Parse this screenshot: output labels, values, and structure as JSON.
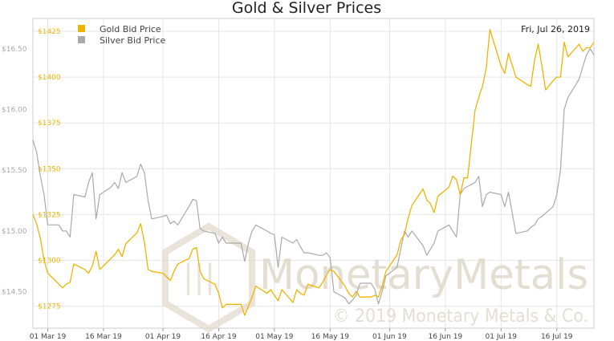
{
  "chart_data": {
    "type": "line",
    "title": "Gold & Silver Prices",
    "date_label": "Fri, Jul 26, 2019",
    "watermark": {
      "name": "MonetaryMetals",
      "copyright": "© 2019 Monetary Metals & Co."
    },
    "legend": {
      "placement": "top-left",
      "entries": [
        "Gold Bid Price",
        "Silver Bid Price"
      ]
    },
    "colors": {
      "gold": "#f0b400",
      "silver": "#a9a9a9",
      "silver_axis": "#a9a9a9",
      "grid": "#e6e6e6",
      "watermark": "#dcd3c4"
    },
    "x_axis": {
      "ticks": [
        {
          "date": "2019-03-01",
          "label": "01 Mar 19"
        },
        {
          "date": "2019-03-16",
          "label": "16 Mar 19"
        },
        {
          "date": "2019-04-01",
          "label": "01 Apr 19"
        },
        {
          "date": "2019-04-16",
          "label": "16 Apr 19"
        },
        {
          "date": "2019-05-01",
          "label": "01 May 19"
        },
        {
          "date": "2019-05-16",
          "label": "16 May 19"
        },
        {
          "date": "2019-06-01",
          "label": "01 Jun 19"
        },
        {
          "date": "2019-06-16",
          "label": "16 Jun 19"
        },
        {
          "date": "2019-07-01",
          "label": "01 Jul 19"
        },
        {
          "date": "2019-07-16",
          "label": "16 Jul 19"
        }
      ],
      "range": [
        "2019-02-25",
        "2019-07-26"
      ]
    },
    "gold_axis": {
      "ylim": [
        1263,
        1432
      ],
      "ticks": [
        {
          "value": 1275,
          "label": "$1275"
        },
        {
          "value": 1300,
          "label": "$1300"
        },
        {
          "value": 1325,
          "label": "$1325"
        },
        {
          "value": 1350,
          "label": "$1350"
        },
        {
          "value": 1375,
          "label": "$1375"
        },
        {
          "value": 1400,
          "label": "$1400"
        },
        {
          "value": 1425,
          "label": "$1425"
        }
      ]
    },
    "silver_axis": {
      "ylim": [
        14.2,
        16.75
      ],
      "ticks": [
        {
          "value": 14.5,
          "label": "$14.50"
        },
        {
          "value": 15.0,
          "label": "$15.00"
        },
        {
          "value": 15.5,
          "label": "$15.50"
        },
        {
          "value": 16.0,
          "label": "$16.00"
        },
        {
          "value": 16.5,
          "label": "$16.50"
        }
      ]
    },
    "series": [
      {
        "name": "Gold Bid Price",
        "points": [
          [
            "2019-02-25",
            1325
          ],
          [
            "2019-02-26",
            1320
          ],
          [
            "2019-02-27",
            1312
          ],
          [
            "2019-02-28",
            1300
          ],
          [
            "2019-03-01",
            1293
          ],
          [
            "2019-03-04",
            1287
          ],
          [
            "2019-03-05",
            1285
          ],
          [
            "2019-03-06",
            1287
          ],
          [
            "2019-03-07",
            1288
          ],
          [
            "2019-03-08",
            1298
          ],
          [
            "2019-03-11",
            1295
          ],
          [
            "2019-03-12",
            1293
          ],
          [
            "2019-03-13",
            1297
          ],
          [
            "2019-03-14",
            1305
          ],
          [
            "2019-03-15",
            1295
          ],
          [
            "2019-03-18",
            1301
          ],
          [
            "2019-03-19",
            1303
          ],
          [
            "2019-03-20",
            1306
          ],
          [
            "2019-03-21",
            1302
          ],
          [
            "2019-03-22",
            1309
          ],
          [
            "2019-03-25",
            1315
          ],
          [
            "2019-03-26",
            1320
          ],
          [
            "2019-03-27",
            1310
          ],
          [
            "2019-03-28",
            1295
          ],
          [
            "2019-03-29",
            1294
          ],
          [
            "2019-04-01",
            1293
          ],
          [
            "2019-04-02",
            1291
          ],
          [
            "2019-04-03",
            1289
          ],
          [
            "2019-04-04",
            1294
          ],
          [
            "2019-04-05",
            1298
          ],
          [
            "2019-04-08",
            1301
          ],
          [
            "2019-04-09",
            1306
          ],
          [
            "2019-04-10",
            1307
          ],
          [
            "2019-04-11",
            1294
          ],
          [
            "2019-04-12",
            1290
          ],
          [
            "2019-04-15",
            1287
          ],
          [
            "2019-04-16",
            1282
          ],
          [
            "2019-04-17",
            1274
          ],
          [
            "2019-04-18",
            1276
          ],
          [
            "2019-04-19",
            1276
          ],
          [
            "2019-04-22",
            1276
          ],
          [
            "2019-04-23",
            1270
          ],
          [
            "2019-04-24",
            1275
          ],
          [
            "2019-04-25",
            1280
          ],
          [
            "2019-04-26",
            1286
          ],
          [
            "2019-04-29",
            1282
          ],
          [
            "2019-04-30",
            1284
          ],
          [
            "2019-05-01",
            1281
          ],
          [
            "2019-05-02",
            1278
          ],
          [
            "2019-05-03",
            1284
          ],
          [
            "2019-05-06",
            1277
          ],
          [
            "2019-05-07",
            1284
          ],
          [
            "2019-05-08",
            1282
          ],
          [
            "2019-05-09",
            1281
          ],
          [
            "2019-05-10",
            1287
          ],
          [
            "2019-05-13",
            1285
          ],
          [
            "2019-05-14",
            1288
          ],
          [
            "2019-05-15",
            1292
          ],
          [
            "2019-05-16",
            1295
          ],
          [
            "2019-05-17",
            1294
          ],
          [
            "2019-05-20",
            1286
          ],
          [
            "2019-05-21",
            1282
          ],
          [
            "2019-05-22",
            1280
          ],
          [
            "2019-05-23",
            1283
          ],
          [
            "2019-05-24",
            1280
          ],
          [
            "2019-05-27",
            1280
          ],
          [
            "2019-05-28",
            1281
          ],
          [
            "2019-05-29",
            1280
          ],
          [
            "2019-05-30",
            1286
          ],
          [
            "2019-05-31",
            1294
          ],
          [
            "2019-06-03",
            1303
          ],
          [
            "2019-06-04",
            1311
          ],
          [
            "2019-06-05",
            1314
          ],
          [
            "2019-06-06",
            1323
          ],
          [
            "2019-06-07",
            1330
          ],
          [
            "2019-06-10",
            1339
          ],
          [
            "2019-06-11",
            1333
          ],
          [
            "2019-06-12",
            1331
          ],
          [
            "2019-06-13",
            1326
          ],
          [
            "2019-06-14",
            1335
          ],
          [
            "2019-06-17",
            1340
          ],
          [
            "2019-06-18",
            1346
          ],
          [
            "2019-06-19",
            1344
          ],
          [
            "2019-06-20",
            1336
          ],
          [
            "2019-06-21",
            1345
          ],
          [
            "2019-06-22",
            1345
          ],
          [
            "2019-06-24",
            1382
          ],
          [
            "2019-06-25",
            1389
          ],
          [
            "2019-06-26",
            1395
          ],
          [
            "2019-06-27",
            1405
          ],
          [
            "2019-06-28",
            1426
          ],
          [
            "2019-07-01",
            1406
          ],
          [
            "2019-07-02",
            1402
          ],
          [
            "2019-07-03",
            1413
          ],
          [
            "2019-07-05",
            1400
          ],
          [
            "2019-07-08",
            1396
          ],
          [
            "2019-07-09",
            1395
          ],
          [
            "2019-07-10",
            1409
          ],
          [
            "2019-07-11",
            1418
          ],
          [
            "2019-07-12",
            1406
          ],
          [
            "2019-07-13",
            1393
          ],
          [
            "2019-07-15",
            1398
          ],
          [
            "2019-07-16",
            1400
          ],
          [
            "2019-07-17",
            1400
          ],
          [
            "2019-07-18",
            1419
          ],
          [
            "2019-07-19",
            1411
          ],
          [
            "2019-07-22",
            1418
          ],
          [
            "2019-07-23",
            1414
          ],
          [
            "2019-07-24",
            1416
          ],
          [
            "2019-07-25",
            1416
          ],
          [
            "2019-07-26",
            1419
          ]
        ]
      },
      {
        "name": "Silver Bid Price",
        "points": [
          [
            "2019-02-25",
            15.75
          ],
          [
            "2019-02-26",
            15.65
          ],
          [
            "2019-02-27",
            15.45
          ],
          [
            "2019-02-28",
            15.3
          ],
          [
            "2019-03-01",
            15.05
          ],
          [
            "2019-03-04",
            15.05
          ],
          [
            "2019-03-05",
            15.0
          ],
          [
            "2019-03-06",
            15.0
          ],
          [
            "2019-03-07",
            14.95
          ],
          [
            "2019-03-08",
            15.3
          ],
          [
            "2019-03-11",
            15.28
          ],
          [
            "2019-03-12",
            15.4
          ],
          [
            "2019-03-13",
            15.48
          ],
          [
            "2019-03-14",
            15.1
          ],
          [
            "2019-03-15",
            15.3
          ],
          [
            "2019-03-18",
            15.36
          ],
          [
            "2019-03-19",
            15.4
          ],
          [
            "2019-03-20",
            15.35
          ],
          [
            "2019-03-21",
            15.48
          ],
          [
            "2019-03-22",
            15.4
          ],
          [
            "2019-03-25",
            15.45
          ],
          [
            "2019-03-26",
            15.55
          ],
          [
            "2019-03-27",
            15.48
          ],
          [
            "2019-03-28",
            15.25
          ],
          [
            "2019-03-29",
            15.1
          ],
          [
            "2019-04-01",
            15.12
          ],
          [
            "2019-04-02",
            15.13
          ],
          [
            "2019-04-03",
            15.06
          ],
          [
            "2019-04-04",
            15.08
          ],
          [
            "2019-04-05",
            15.05
          ],
          [
            "2019-04-08",
            15.2
          ],
          [
            "2019-04-09",
            15.26
          ],
          [
            "2019-04-10",
            15.25
          ],
          [
            "2019-04-11",
            15.02
          ],
          [
            "2019-04-12",
            15.0
          ],
          [
            "2019-04-15",
            14.98
          ],
          [
            "2019-04-16",
            14.9
          ],
          [
            "2019-04-17",
            14.95
          ],
          [
            "2019-04-18",
            14.9
          ],
          [
            "2019-04-19",
            14.9
          ],
          [
            "2019-04-22",
            14.9
          ],
          [
            "2019-04-23",
            14.75
          ],
          [
            "2019-04-24",
            14.9
          ],
          [
            "2019-04-25",
            15.0
          ],
          [
            "2019-04-26",
            15.05
          ],
          [
            "2019-04-29",
            15.0
          ],
          [
            "2019-04-30",
            14.98
          ],
          [
            "2019-05-01",
            14.97
          ],
          [
            "2019-05-02",
            14.7
          ],
          [
            "2019-05-03",
            14.95
          ],
          [
            "2019-05-06",
            14.9
          ],
          [
            "2019-05-07",
            14.93
          ],
          [
            "2019-05-08",
            14.87
          ],
          [
            "2019-05-09",
            14.82
          ],
          [
            "2019-05-10",
            14.82
          ],
          [
            "2019-05-13",
            14.8
          ],
          [
            "2019-05-14",
            14.8
          ],
          [
            "2019-05-15",
            14.82
          ],
          [
            "2019-05-16",
            14.78
          ],
          [
            "2019-05-17",
            14.5
          ],
          [
            "2019-05-20",
            14.45
          ],
          [
            "2019-05-21",
            14.4
          ],
          [
            "2019-05-22",
            14.43
          ],
          [
            "2019-05-23",
            14.47
          ],
          [
            "2019-05-24",
            14.57
          ],
          [
            "2019-05-27",
            14.57
          ],
          [
            "2019-05-28",
            14.52
          ],
          [
            "2019-05-29",
            14.4
          ],
          [
            "2019-05-30",
            14.5
          ],
          [
            "2019-05-31",
            14.63
          ],
          [
            "2019-06-03",
            14.7
          ],
          [
            "2019-06-04",
            14.85
          ],
          [
            "2019-06-05",
            15.0
          ],
          [
            "2019-06-06",
            14.95
          ],
          [
            "2019-06-07",
            15.0
          ],
          [
            "2019-06-10",
            14.88
          ],
          [
            "2019-06-11",
            14.8
          ],
          [
            "2019-06-12",
            14.85
          ],
          [
            "2019-06-13",
            14.9
          ],
          [
            "2019-06-14",
            15.0
          ],
          [
            "2019-06-17",
            15.05
          ],
          [
            "2019-06-18",
            15.0
          ],
          [
            "2019-06-19",
            14.95
          ],
          [
            "2019-06-20",
            15.3
          ],
          [
            "2019-06-21",
            15.35
          ],
          [
            "2019-06-24",
            15.4
          ],
          [
            "2019-06-25",
            15.45
          ],
          [
            "2019-06-26",
            15.2
          ],
          [
            "2019-06-27",
            15.3
          ],
          [
            "2019-06-28",
            15.32
          ],
          [
            "2019-07-01",
            15.3
          ],
          [
            "2019-07-02",
            15.2
          ],
          [
            "2019-07-03",
            15.32
          ],
          [
            "2019-07-05",
            14.98
          ],
          [
            "2019-07-08",
            15.0
          ],
          [
            "2019-07-09",
            15.03
          ],
          [
            "2019-07-10",
            15.05
          ],
          [
            "2019-07-11",
            15.1
          ],
          [
            "2019-07-12",
            15.12
          ],
          [
            "2019-07-15",
            15.2
          ],
          [
            "2019-07-16",
            15.3
          ],
          [
            "2019-07-17",
            15.5
          ],
          [
            "2019-07-18",
            16.0
          ],
          [
            "2019-07-19",
            16.1
          ],
          [
            "2019-07-22",
            16.25
          ],
          [
            "2019-07-23",
            16.35
          ],
          [
            "2019-07-24",
            16.45
          ],
          [
            "2019-07-25",
            16.5
          ],
          [
            "2019-07-26",
            16.45
          ]
        ]
      }
    ]
  }
}
